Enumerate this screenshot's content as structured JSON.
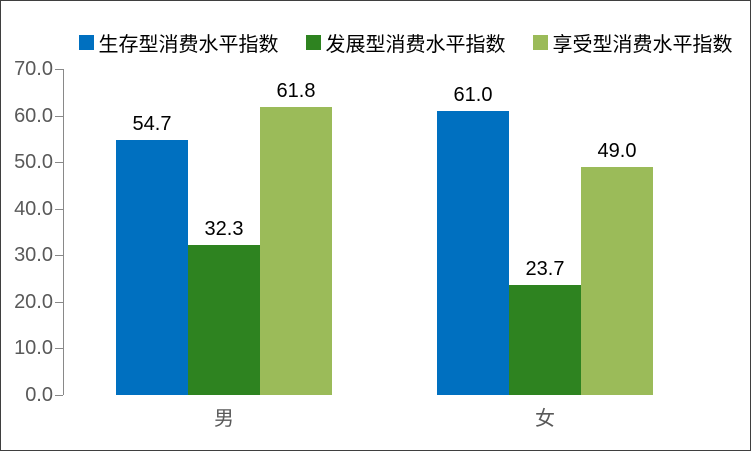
{
  "chart_data": {
    "type": "bar",
    "title": "",
    "xlabel": "",
    "ylabel": "",
    "categories": [
      "男",
      "女"
    ],
    "series": [
      {
        "name": "生存型消费水平指数",
        "color": "#0070C0",
        "values": [
          54.7,
          61.0
        ]
      },
      {
        "name": "发展型消费水平指数",
        "color": "#2E8320",
        "values": [
          32.3,
          23.7
        ]
      },
      {
        "name": "享受型消费水平指数",
        "color": "#9BBB59",
        "values": [
          61.8,
          49.0
        ]
      }
    ],
    "ylim": [
      0,
      70
    ],
    "ytick_step": 10,
    "ytick_labels": [
      "0.0",
      "10.0",
      "20.0",
      "30.0",
      "40.0",
      "50.0",
      "60.0",
      "70.0"
    ],
    "grid": false,
    "legend_position": "top",
    "data_labels_shown": true,
    "data_labels": [
      [
        "54.7",
        "61.0"
      ],
      [
        "32.3",
        "23.7"
      ],
      [
        "61.8",
        "49.0"
      ]
    ]
  },
  "colors": {
    "axis_line": "#898989",
    "tick_label": "#595959",
    "category_label": "#595959",
    "data_label": "#000000",
    "legend_text": "#000000",
    "border": "#3F3F3F",
    "background": "#FFFFFF"
  }
}
